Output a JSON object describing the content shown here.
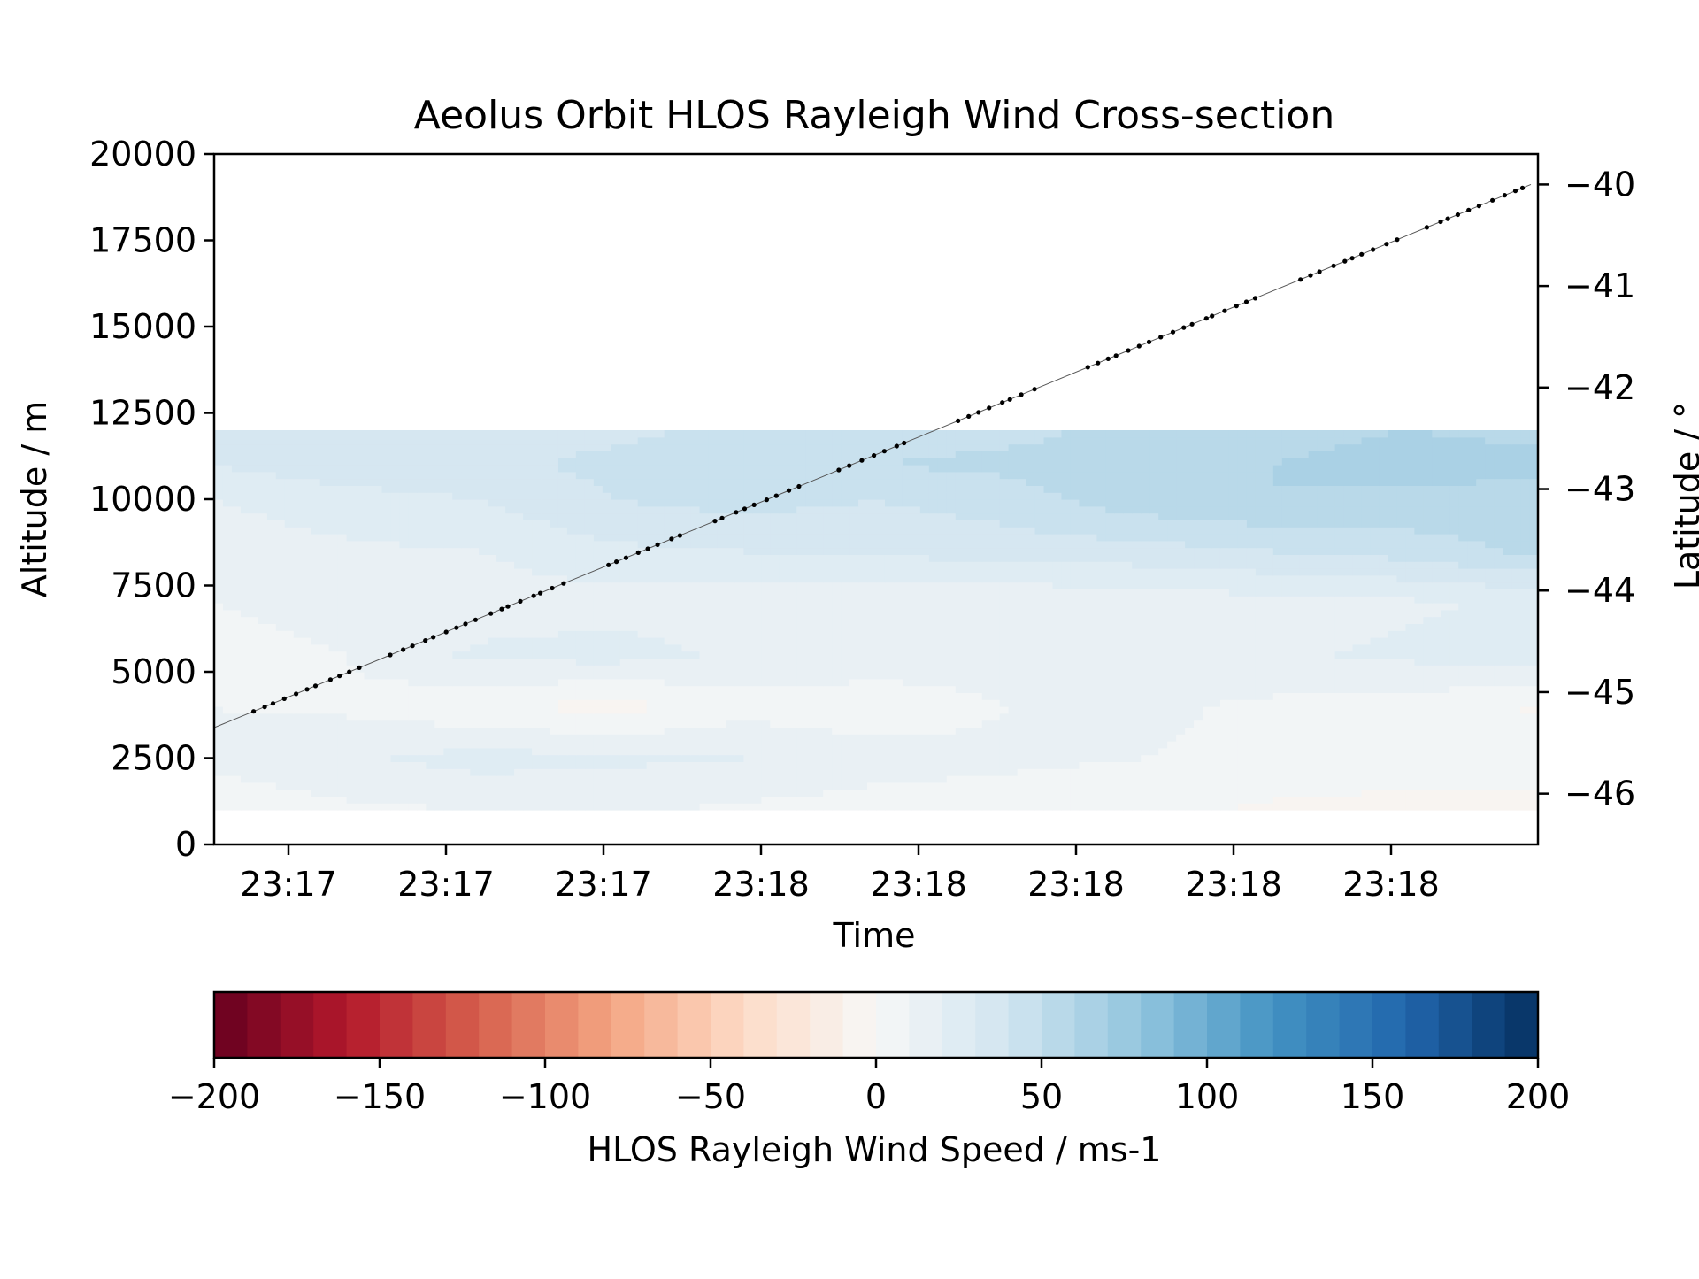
{
  "chart_data": {
    "type": "heatmap",
    "title": "Aeolus Orbit HLOS Rayleigh Wind Cross-section",
    "xlabel": "Time",
    "ylabel": "Altitude / m",
    "y2label": "Latitude / °",
    "colorbar_label": "HLOS Rayleigh Wind Speed / ms-1",
    "x_tick_labels": [
      "23:17",
      "23:17",
      "23:17",
      "23:18",
      "23:18",
      "23:18",
      "23:18",
      "23:18"
    ],
    "xlim_normalized_note": "",
    "ylim": [
      0,
      20000
    ],
    "y_ticks": [
      0,
      2500,
      5000,
      7500,
      10000,
      12500,
      15000,
      17500,
      20000
    ],
    "y2lim": [
      -46.5,
      -39.7
    ],
    "y2_ticks": [
      -46,
      -45,
      -44,
      -43,
      -42,
      -41,
      -40
    ],
    "y2_tick_labels": [
      "−46",
      "−45",
      "−44",
      "−43",
      "−42",
      "−41",
      "−40"
    ],
    "colorbar_ticks": [
      -200,
      -150,
      -100,
      -50,
      0,
      50,
      100,
      150,
      200
    ],
    "colorbar_tick_labels": [
      "−200",
      "−150",
      "−100",
      "−50",
      "0",
      "50",
      "100",
      "150",
      "200"
    ],
    "colorbar_range": [
      -200,
      200
    ],
    "colorbar_levels": 40,
    "colormap": "RdBu",
    "contour": {
      "altitude_levels": [
        1000,
        2500,
        4000,
        5500,
        7000,
        8500,
        10000,
        11000,
        12000
      ],
      "time_fraction": [
        0.0,
        0.1,
        0.2,
        0.3,
        0.4,
        0.5,
        0.6,
        0.7,
        0.8,
        0.9,
        1.0
      ],
      "wind_ms": [
        [
          4,
          8,
          10,
          12,
          8,
          6,
          5,
          3,
          -2,
          -4,
          -6
        ],
        [
          12,
          18,
          24,
          22,
          20,
          14,
          12,
          10,
          8,
          6,
          10
        ],
        [
          10,
          8,
          2,
          -4,
          6,
          4,
          10,
          12,
          8,
          6,
          -2
        ],
        [
          8,
          10,
          22,
          24,
          18,
          16,
          14,
          12,
          18,
          22,
          26
        ],
        [
          10,
          12,
          14,
          16,
          14,
          12,
          12,
          14,
          16,
          18,
          22
        ],
        [
          14,
          18,
          20,
          28,
          30,
          32,
          34,
          36,
          40,
          44,
          52
        ],
        [
          20,
          26,
          30,
          40,
          44,
          40,
          46,
          56,
          60,
          58,
          56
        ],
        [
          30,
          36,
          38,
          42,
          46,
          50,
          52,
          54,
          60,
          64,
          62
        ],
        [
          32,
          34,
          36,
          38,
          42,
          46,
          48,
          52,
          56,
          60,
          58
        ]
      ]
    },
    "track_latitude_range": [
      -45.35,
      -40.0
    ],
    "track_points": 120
  }
}
